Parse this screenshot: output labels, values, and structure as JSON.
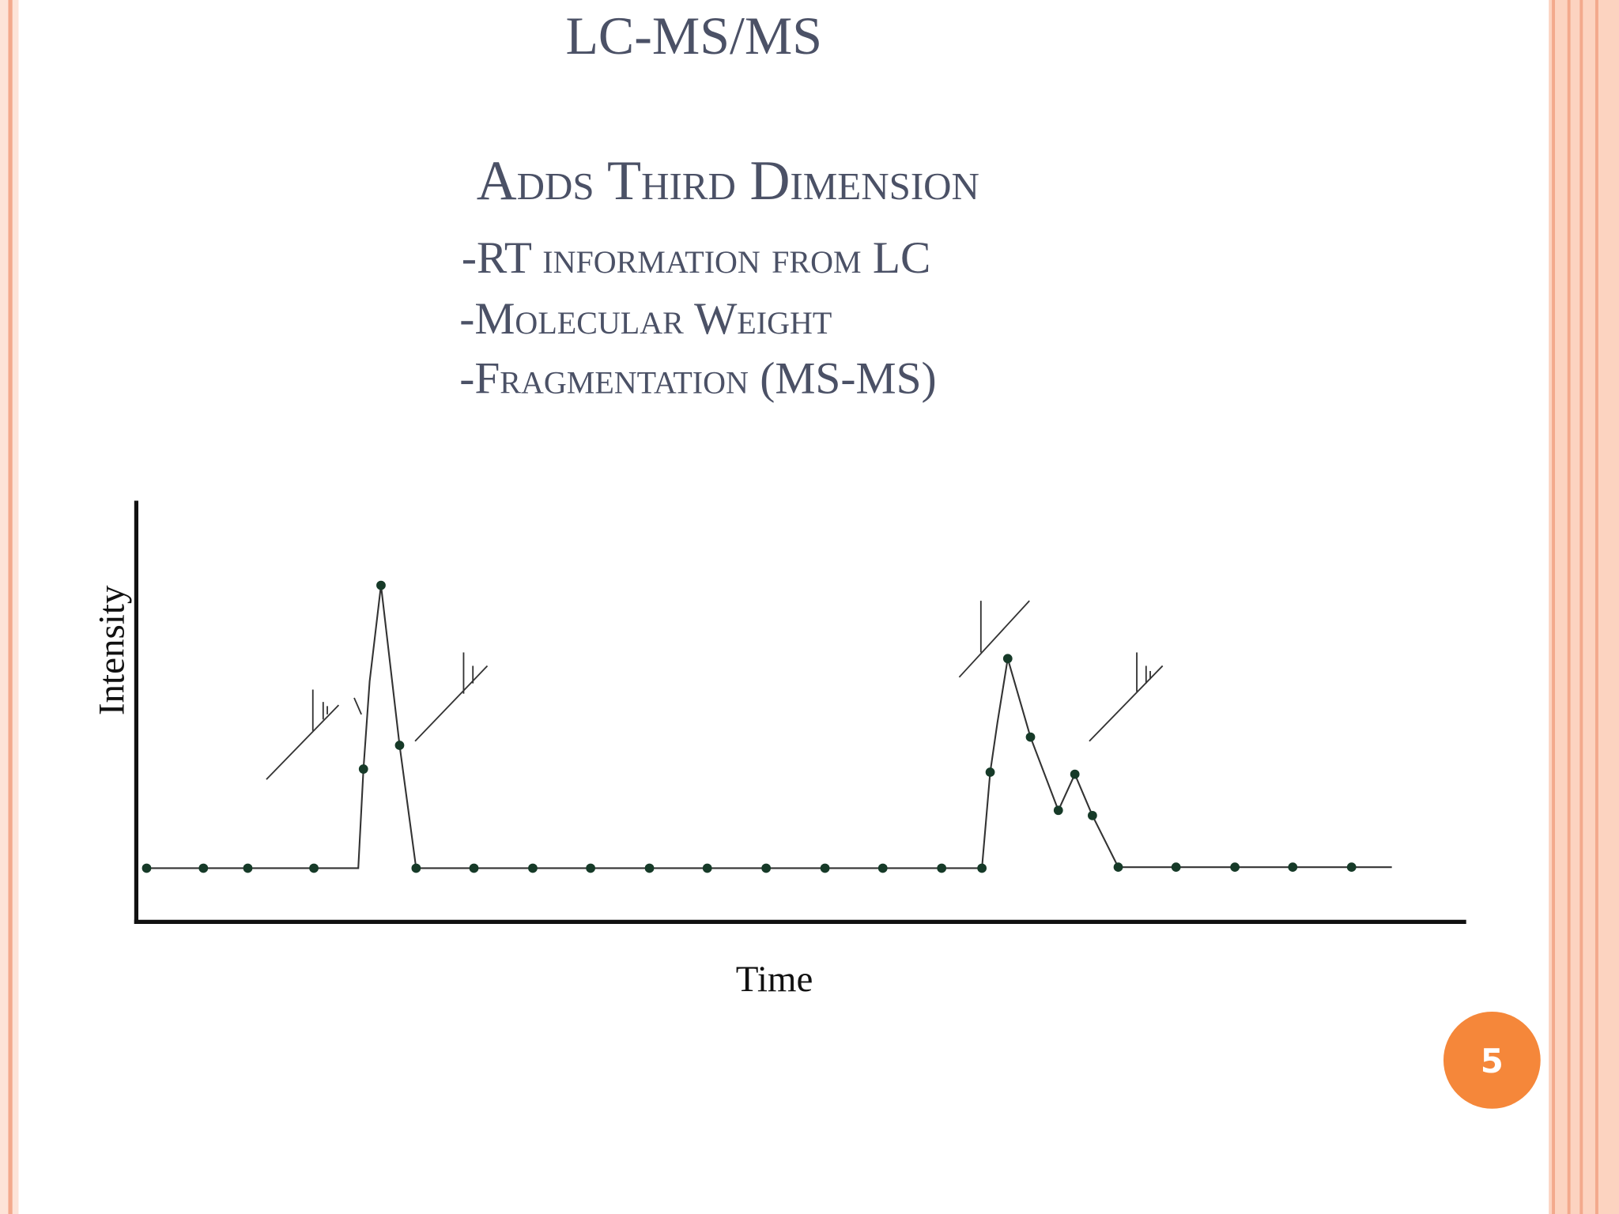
{
  "slide": {
    "title": "LC-MS/MS",
    "subtitle": "Adds Third Dimension",
    "bullets": [
      "-RT information  from LC",
      "-Molecular Weight",
      "-Fragmentation (MS-MS)"
    ],
    "figure": {
      "y_axis_label": "Intensity",
      "x_axis_label": "Time"
    },
    "page_number": "5"
  }
}
